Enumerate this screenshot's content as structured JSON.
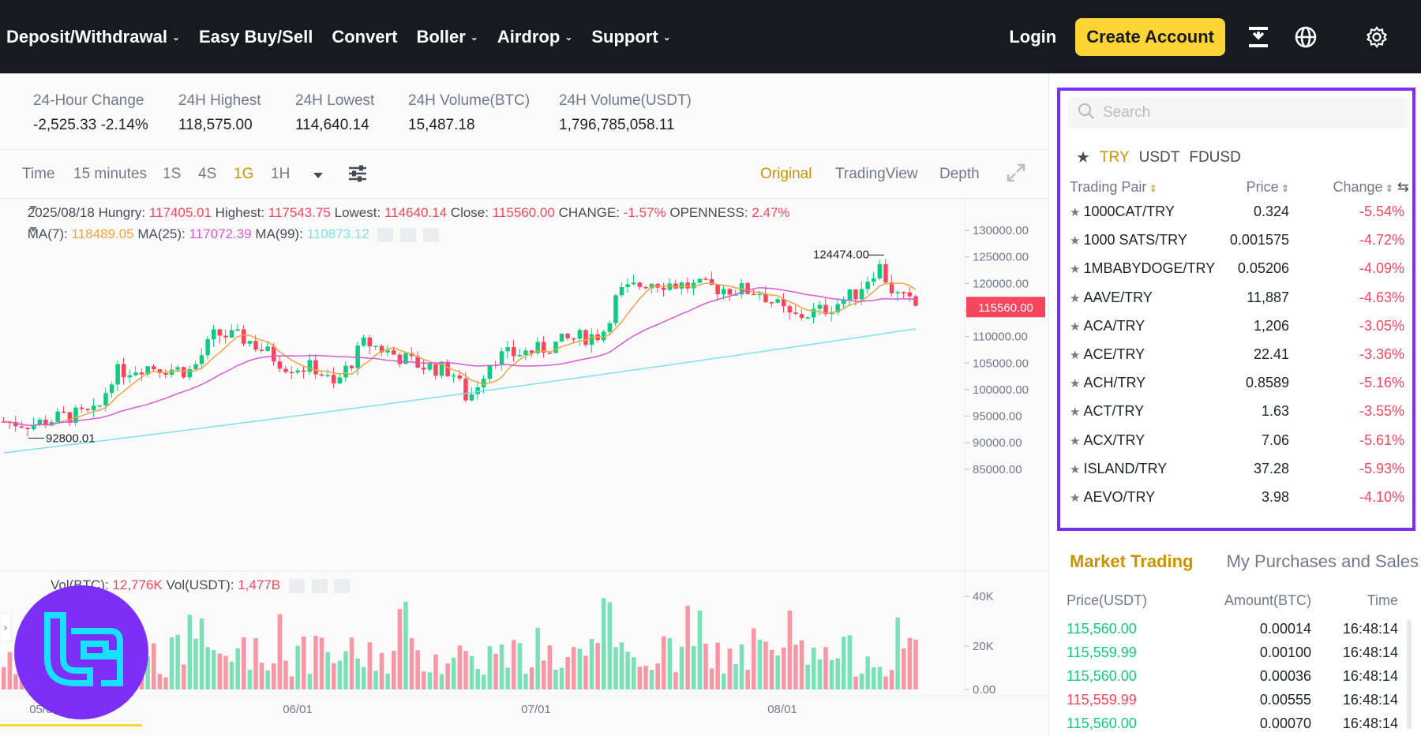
{
  "nav": {
    "items": [
      {
        "label": "Deposit/Withdrawal",
        "chevron": true
      },
      {
        "label": "Easy Buy/Sell",
        "chevron": false
      },
      {
        "label": "Convert",
        "chevron": false
      },
      {
        "label": "Boller",
        "chevron": true
      },
      {
        "label": "Airdrop",
        "chevron": true
      },
      {
        "label": "Support",
        "chevron": true
      }
    ],
    "login": "Login",
    "create_account": "Create Account"
  },
  "stats": [
    {
      "label": "24-Hour Change",
      "value": "-2,525.33 -2.14%",
      "color": "red"
    },
    {
      "label": "24H Highest",
      "value": "118,575.00"
    },
    {
      "label": "24H Lowest",
      "value": "114,640.14"
    },
    {
      "label": "24H Volume(BTC)",
      "value": "15,487.18"
    },
    {
      "label": "24H Volume(USDT)",
      "value": "1,796,785,058.11"
    }
  ],
  "toolbar": {
    "time": "Time",
    "intervals": [
      "15 minutes",
      "1S",
      "4S",
      "1G",
      "1H"
    ],
    "active_interval": "1G",
    "views": [
      "Original",
      "TradingView",
      "Depth"
    ],
    "active_view": "Original"
  },
  "legend": {
    "date": "2025/08/18",
    "hungry_label": "Hungry:",
    "hungry": "117405.01",
    "highest_label": "Highest:",
    "highest": "117543.75",
    "lowest_label": "Lowest:",
    "lowest": "114640.14",
    "close_label": "Close:",
    "close": "115560.00",
    "change_label": "CHANGE:",
    "change": "-1.57%",
    "openness_label": "OPENNESS:",
    "openness": "2.47%",
    "ma7_label": "MA(7):",
    "ma7": "118489.05",
    "ma25_label": "MA(25):",
    "ma25": "117072.39",
    "ma99_label": "MA(99):",
    "ma99": "110873.12",
    "vol_btc_label": "Vol(BTC):",
    "vol_btc": "12,776K",
    "vol_usdt_label": "Vol(USDT):",
    "vol_usdt": "1,477B"
  },
  "chart_data": {
    "type": "candlestick",
    "price_axis": [
      "130000.00",
      "125000.00",
      "120000.00",
      "115000.00",
      "110000.00",
      "105000.00",
      "100000.00",
      "95000.00",
      "90000.00",
      "85000.00"
    ],
    "volume_axis": [
      "40K",
      "20K",
      "0.00"
    ],
    "x_ticks": [
      "05/01",
      "06/01",
      "07/01",
      "08/01"
    ],
    "current_price": "115560.00",
    "max_label": "124474.00",
    "min_label": "92800.01",
    "ylim": [
      82000,
      131500
    ]
  },
  "market": {
    "search_placeholder": "Search",
    "quote_tabs": [
      "TRY",
      "USDT",
      "FDUSD"
    ],
    "active_quote": "TRY",
    "headers": {
      "pair": "Trading Pair",
      "price": "Price",
      "change": "Change"
    },
    "rows": [
      {
        "pair": "1000CAT/TRY",
        "price": "0.324",
        "price_color": "default",
        "change": "-5.54%"
      },
      {
        "pair": "1000 SATS/TRY",
        "price": "0.001575",
        "price_color": "default",
        "change": "-4.72%"
      },
      {
        "pair": "1MBABYDOGE/TRY",
        "price": "0.05206",
        "price_color": "default",
        "change": "-4.09%"
      },
      {
        "pair": "AAVE/TRY",
        "price": "11,887",
        "price_color": "green",
        "change": "-4.63%"
      },
      {
        "pair": "ACA/TRY",
        "price": "1,206",
        "price_color": "default",
        "change": "-3.05%"
      },
      {
        "pair": "ACE/TRY",
        "price": "22.41",
        "price_color": "default",
        "change": "-3.36%"
      },
      {
        "pair": "ACH/TRY",
        "price": "0.8589",
        "price_color": "red",
        "change": "-5.16%"
      },
      {
        "pair": "ACT/TRY",
        "price": "1.63",
        "price_color": "default",
        "change": "-3.55%"
      },
      {
        "pair": "ACX/TRY",
        "price": "7.06",
        "price_color": "default",
        "change": "-5.61%"
      },
      {
        "pair": "ISLAND/TRY",
        "price": "37.28",
        "price_color": "green",
        "change": "-5.93%"
      },
      {
        "pair": "AEVO/TRY",
        "price": "3.98",
        "price_color": "default",
        "change": "-4.10%"
      }
    ]
  },
  "trades": {
    "tab_market": "Market Trading",
    "tab_mine": "My Purchases and Sales",
    "headers": {
      "price": "Price(USDT)",
      "amount": "Amount(BTC)",
      "time": "Time"
    },
    "rows": [
      {
        "price": "115,560.00",
        "side": "buy",
        "amount": "0.00014",
        "time": "16:48:14"
      },
      {
        "price": "115,559.99",
        "side": "buy",
        "amount": "0.00100",
        "time": "16:48:14"
      },
      {
        "price": "115,560.00",
        "side": "buy",
        "amount": "0.00036",
        "time": "16:48:14"
      },
      {
        "price": "115,559.99",
        "side": "sell",
        "amount": "0.00555",
        "time": "16:48:14"
      },
      {
        "price": "115,560.00",
        "side": "buy",
        "amount": "0.00070",
        "time": "16:48:14"
      }
    ]
  },
  "colors": {
    "up": "#0ecb81",
    "down": "#f6465d",
    "accent": "#c99400",
    "brand_yellow": "#fcd535",
    "highlight": "#7b2ff7"
  }
}
